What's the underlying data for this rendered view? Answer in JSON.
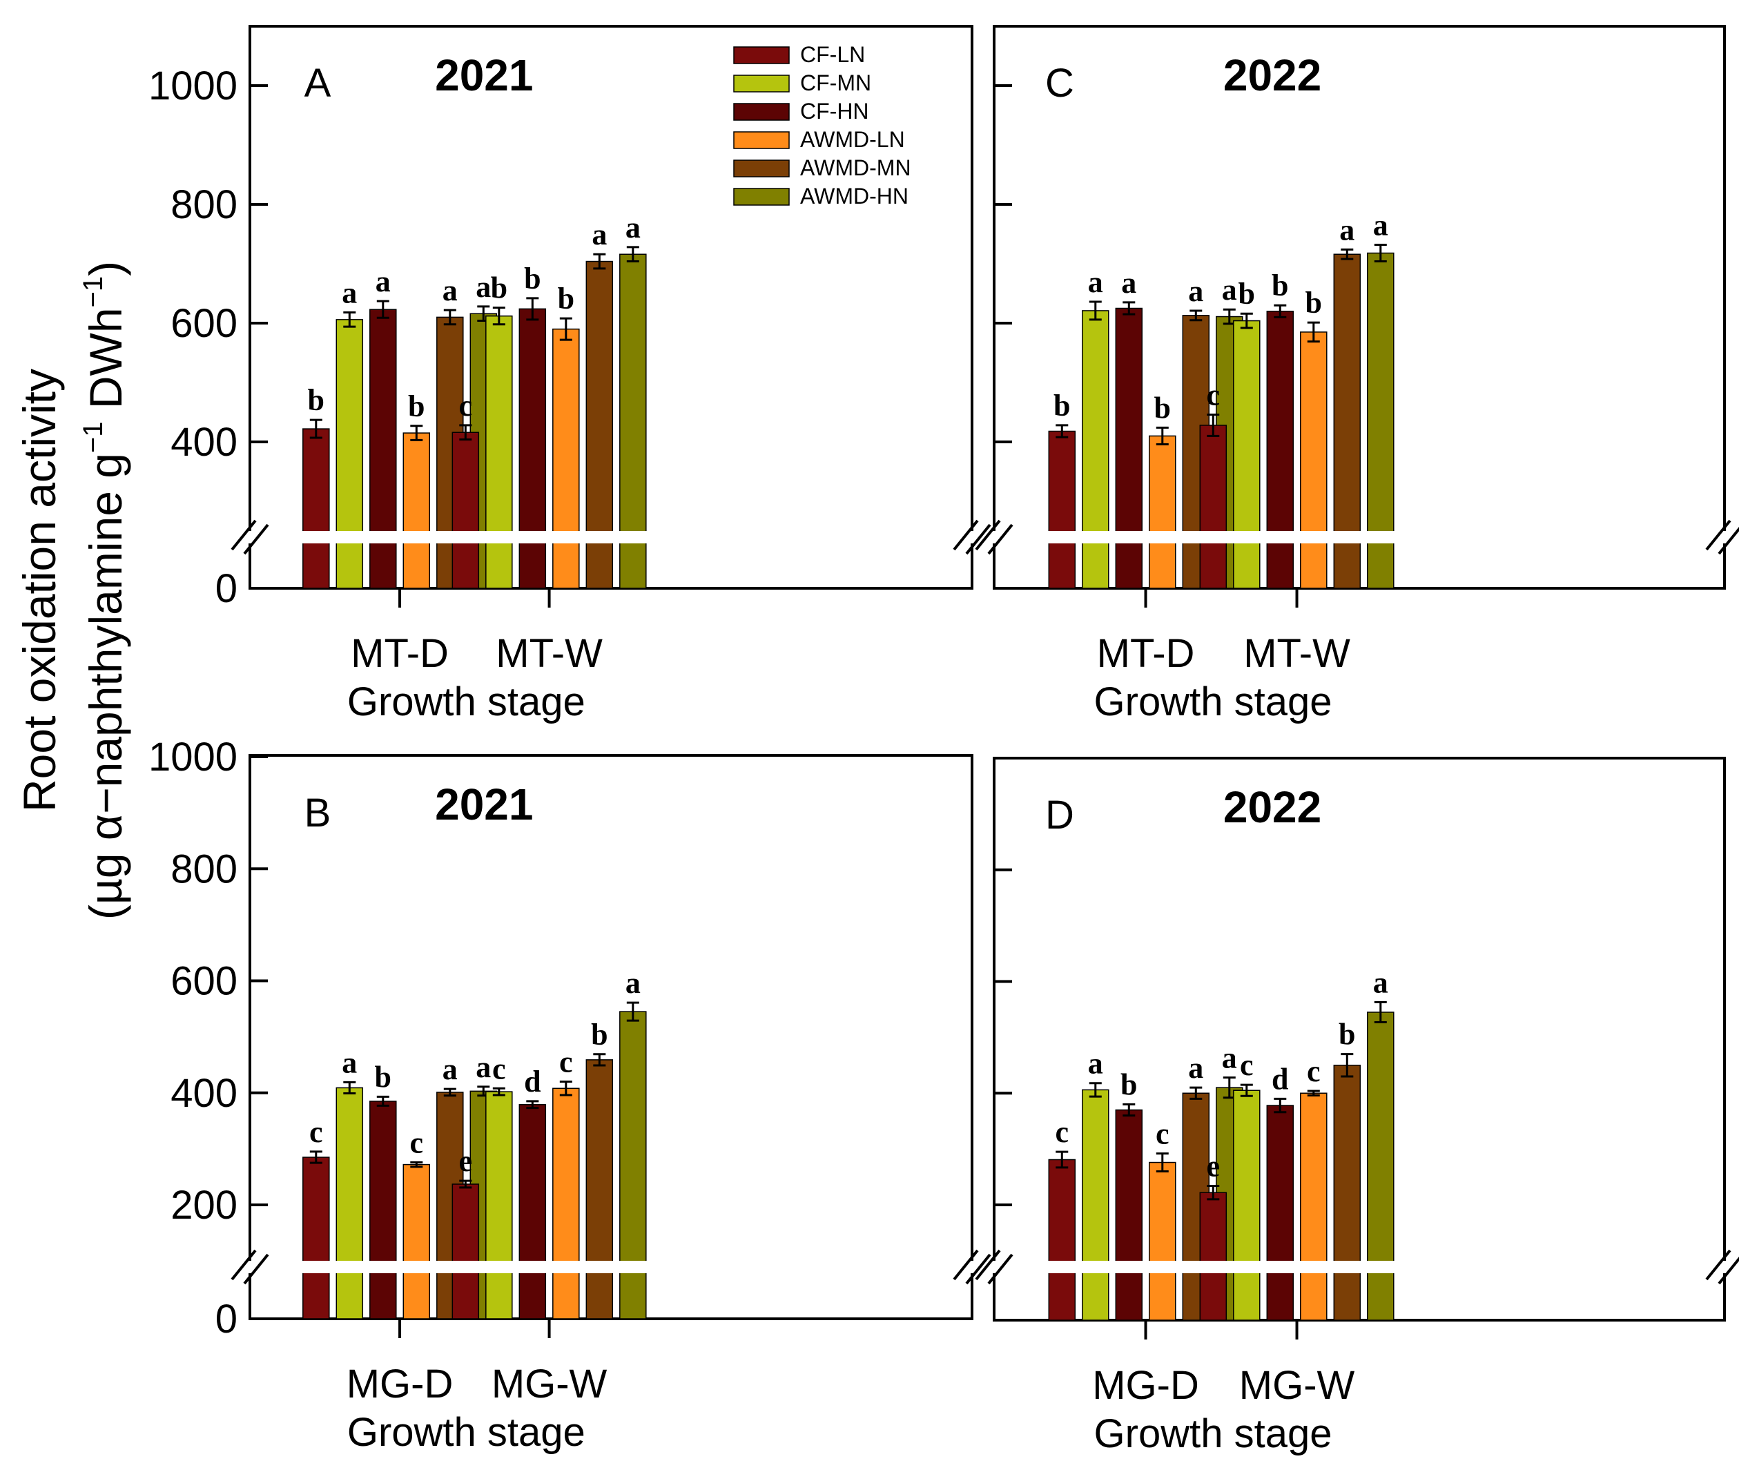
{
  "figure": {
    "y_axis_title_line1": "Root oxidation activity",
    "y_axis_title_line2_prefix": "(µg α−naphthylamine g",
    "y_axis_title_line2_sup1": "−1",
    "y_axis_title_line2_mid": " DWh",
    "y_axis_title_line2_sup2": "−1",
    "y_axis_title_line2_suffix": ")"
  },
  "legend": {
    "entries": [
      "CF-LN",
      "CF-MN",
      "CF-HN",
      "AWMD-LN",
      "AWMD-MN",
      "AWMD-HN"
    ]
  },
  "chart_data": [
    {
      "type": "bar",
      "panel": "A",
      "title": "2021",
      "xlabel": "Growth stage",
      "ylabel": "Root oxidation activity (µg α−naphthylamine g−1 DWh−1)",
      "categories": [
        "MT-D",
        "MT-W"
      ],
      "ylim": [
        0,
        1100
      ],
      "axis_break": [
        240,
        240
      ],
      "yticks": [
        0,
        400,
        600,
        800,
        1000
      ],
      "show_tick_labels": true,
      "series": [
        {
          "name": "CF-LN",
          "color": "#7a0b0b",
          "values": [
            422,
            416
          ],
          "errors": [
            15,
            12
          ],
          "letters": [
            "b",
            "c"
          ]
        },
        {
          "name": "CF-MN",
          "color": "#b5c40e",
          "values": [
            606,
            612
          ],
          "errors": [
            12,
            14
          ],
          "letters": [
            "a",
            "b"
          ]
        },
        {
          "name": "CF-HN",
          "color": "#5c0404",
          "values": [
            623,
            624
          ],
          "errors": [
            14,
            18
          ],
          "letters": [
            "a",
            "b"
          ]
        },
        {
          "name": "AWMD-LN",
          "color": "#ff8c1a",
          "values": [
            415,
            590
          ],
          "errors": [
            12,
            18
          ],
          "letters": [
            "b",
            "b"
          ]
        },
        {
          "name": "AWMD-MN",
          "color": "#7b3f06",
          "values": [
            610,
            704
          ],
          "errors": [
            12,
            12
          ],
          "letters": [
            "a",
            "a"
          ]
        },
        {
          "name": "AWMD-HN",
          "color": "#808000",
          "values": [
            616,
            716
          ],
          "errors": [
            12,
            12
          ],
          "letters": [
            "a",
            "a"
          ]
        }
      ]
    },
    {
      "type": "bar",
      "panel": "C",
      "title": "2022",
      "xlabel": "Growth stage",
      "categories": [
        "MT-D",
        "MT-W"
      ],
      "ylim": [
        0,
        1100
      ],
      "axis_break": [
        240,
        240
      ],
      "yticks": [
        0,
        400,
        600,
        800,
        1000
      ],
      "show_tick_labels": false,
      "series": [
        {
          "name": "CF-LN",
          "color": "#7a0b0b",
          "values": [
            418,
            428
          ],
          "errors": [
            10,
            18
          ],
          "letters": [
            "b",
            "c"
          ]
        },
        {
          "name": "CF-MN",
          "color": "#b5c40e",
          "values": [
            621,
            604
          ],
          "errors": [
            15,
            12
          ],
          "letters": [
            "a",
            "b"
          ]
        },
        {
          "name": "CF-HN",
          "color": "#5c0404",
          "values": [
            625,
            620
          ],
          "errors": [
            10,
            10
          ],
          "letters": [
            "a",
            "b"
          ]
        },
        {
          "name": "AWMD-LN",
          "color": "#ff8c1a",
          "values": [
            410,
            585
          ],
          "errors": [
            14,
            16
          ],
          "letters": [
            "b",
            "b"
          ]
        },
        {
          "name": "AWMD-MN",
          "color": "#7b3f06",
          "values": [
            613,
            716
          ],
          "errors": [
            8,
            8
          ],
          "letters": [
            "a",
            "a"
          ]
        },
        {
          "name": "AWMD-HN",
          "color": "#808000",
          "values": [
            611,
            718
          ],
          "errors": [
            12,
            14
          ],
          "letters": [
            "a",
            "a"
          ]
        }
      ]
    },
    {
      "type": "bar",
      "panel": "B",
      "title": "2021",
      "xlabel": "Growth stage",
      "categories": [
        "MG-D",
        "MG-W"
      ],
      "ylim": [
        0,
        1000
      ],
      "axis_break": [
        100,
        100
      ],
      "yticks": [
        0,
        200,
        400,
        600,
        800,
        1000
      ],
      "show_tick_labels": true,
      "series": [
        {
          "name": "CF-LN",
          "color": "#7a0b0b",
          "values": [
            285,
            237
          ],
          "errors": [
            10,
            6
          ],
          "letters": [
            "c",
            "e"
          ]
        },
        {
          "name": "CF-MN",
          "color": "#b5c40e",
          "values": [
            409,
            402
          ],
          "errors": [
            10,
            6
          ],
          "letters": [
            "a",
            "c"
          ]
        },
        {
          "name": "CF-HN",
          "color": "#5c0404",
          "values": [
            385,
            379
          ],
          "errors": [
            8,
            6
          ],
          "letters": [
            "b",
            "d"
          ]
        },
        {
          "name": "AWMD-LN",
          "color": "#ff8c1a",
          "values": [
            272,
            408
          ],
          "errors": [
            4,
            12
          ],
          "letters": [
            "c",
            "c"
          ]
        },
        {
          "name": "AWMD-MN",
          "color": "#7b3f06",
          "values": [
            401,
            459
          ],
          "errors": [
            6,
            10
          ],
          "letters": [
            "a",
            "b"
          ]
        },
        {
          "name": "AWMD-HN",
          "color": "#808000",
          "values": [
            403,
            545
          ],
          "errors": [
            8,
            16
          ],
          "letters": [
            "a",
            "a"
          ]
        }
      ]
    },
    {
      "type": "bar",
      "panel": "D",
      "title": "2022",
      "xlabel": "Growth stage",
      "categories": [
        "MG-D",
        "MG-W"
      ],
      "ylim": [
        0,
        1000
      ],
      "axis_break": [
        100,
        100
      ],
      "yticks": [
        0,
        200,
        400,
        600,
        800,
        1000
      ],
      "show_tick_labels": false,
      "series": [
        {
          "name": "CF-LN",
          "color": "#7a0b0b",
          "values": [
            281,
            222
          ],
          "errors": [
            14,
            12
          ],
          "letters": [
            "c",
            "e"
          ]
        },
        {
          "name": "CF-MN",
          "color": "#b5c40e",
          "values": [
            406,
            405
          ],
          "errors": [
            12,
            10
          ],
          "letters": [
            "a",
            "c"
          ]
        },
        {
          "name": "CF-HN",
          "color": "#5c0404",
          "values": [
            370,
            378
          ],
          "errors": [
            10,
            12
          ],
          "letters": [
            "b",
            "d"
          ]
        },
        {
          "name": "AWMD-LN",
          "color": "#ff8c1a",
          "values": [
            276,
            400
          ],
          "errors": [
            16,
            4
          ],
          "letters": [
            "c",
            "c"
          ]
        },
        {
          "name": "AWMD-MN",
          "color": "#7b3f06",
          "values": [
            400,
            450
          ],
          "errors": [
            10,
            20
          ],
          "letters": [
            "a",
            "b"
          ]
        },
        {
          "name": "AWMD-HN",
          "color": "#808000",
          "values": [
            410,
            545
          ],
          "errors": [
            18,
            18
          ],
          "letters": [
            "a",
            "a"
          ]
        }
      ]
    }
  ]
}
